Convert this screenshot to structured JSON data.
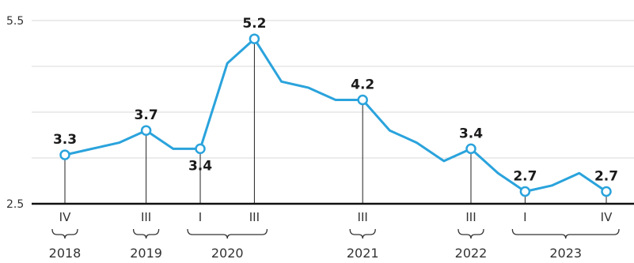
{
  "chart_data": {
    "type": "line",
    "y_ticks": [
      "5.5",
      "2.5"
    ],
    "ylim": [
      2.5,
      5.5
    ],
    "grid": true,
    "color": "#2aa3dc",
    "points": [
      {
        "q": "2018 Q4",
        "v": 3.3,
        "label": "3.3",
        "qlabel": "IV"
      },
      {
        "q": "2019 Q1",
        "v": 3.4
      },
      {
        "q": "2019 Q2",
        "v": 3.5
      },
      {
        "q": "2019 Q3",
        "v": 3.7,
        "label": "3.7",
        "qlabel": "III"
      },
      {
        "q": "2019 Q4",
        "v": 3.4
      },
      {
        "q": "2020 Q1",
        "v": 3.4,
        "label": "3.4",
        "qlabel": "I"
      },
      {
        "q": "2020 Q2",
        "v": 4.8
      },
      {
        "q": "2020 Q3",
        "v": 5.2,
        "label": "5.2",
        "qlabel": "III"
      },
      {
        "q": "2020 Q4",
        "v": 4.5
      },
      {
        "q": "2021 Q1",
        "v": 4.4
      },
      {
        "q": "2021 Q2",
        "v": 4.2
      },
      {
        "q": "2021 Q3",
        "v": 4.2,
        "label": "4.2",
        "qlabel": "III"
      },
      {
        "q": "2021 Q4",
        "v": 3.7
      },
      {
        "q": "2022 Q1",
        "v": 3.5
      },
      {
        "q": "2022 Q2",
        "v": 3.2
      },
      {
        "q": "2022 Q3",
        "v": 3.4,
        "label": "3.4",
        "qlabel": "III"
      },
      {
        "q": "2022 Q4",
        "v": 3.0
      },
      {
        "q": "2023 Q1",
        "v": 2.7,
        "label": "2.7",
        "qlabel": "I"
      },
      {
        "q": "2023 Q2",
        "v": 2.8
      },
      {
        "q": "2023 Q3",
        "v": 3.0
      },
      {
        "q": "2023 Q4",
        "v": 2.7,
        "label": "2.7",
        "qlabel": "IV"
      }
    ],
    "year_groups": [
      {
        "year": "2018"
      },
      {
        "year": "2019"
      },
      {
        "year": "2020"
      },
      {
        "year": "2021"
      },
      {
        "year": "2022"
      },
      {
        "year": "2023"
      }
    ]
  }
}
